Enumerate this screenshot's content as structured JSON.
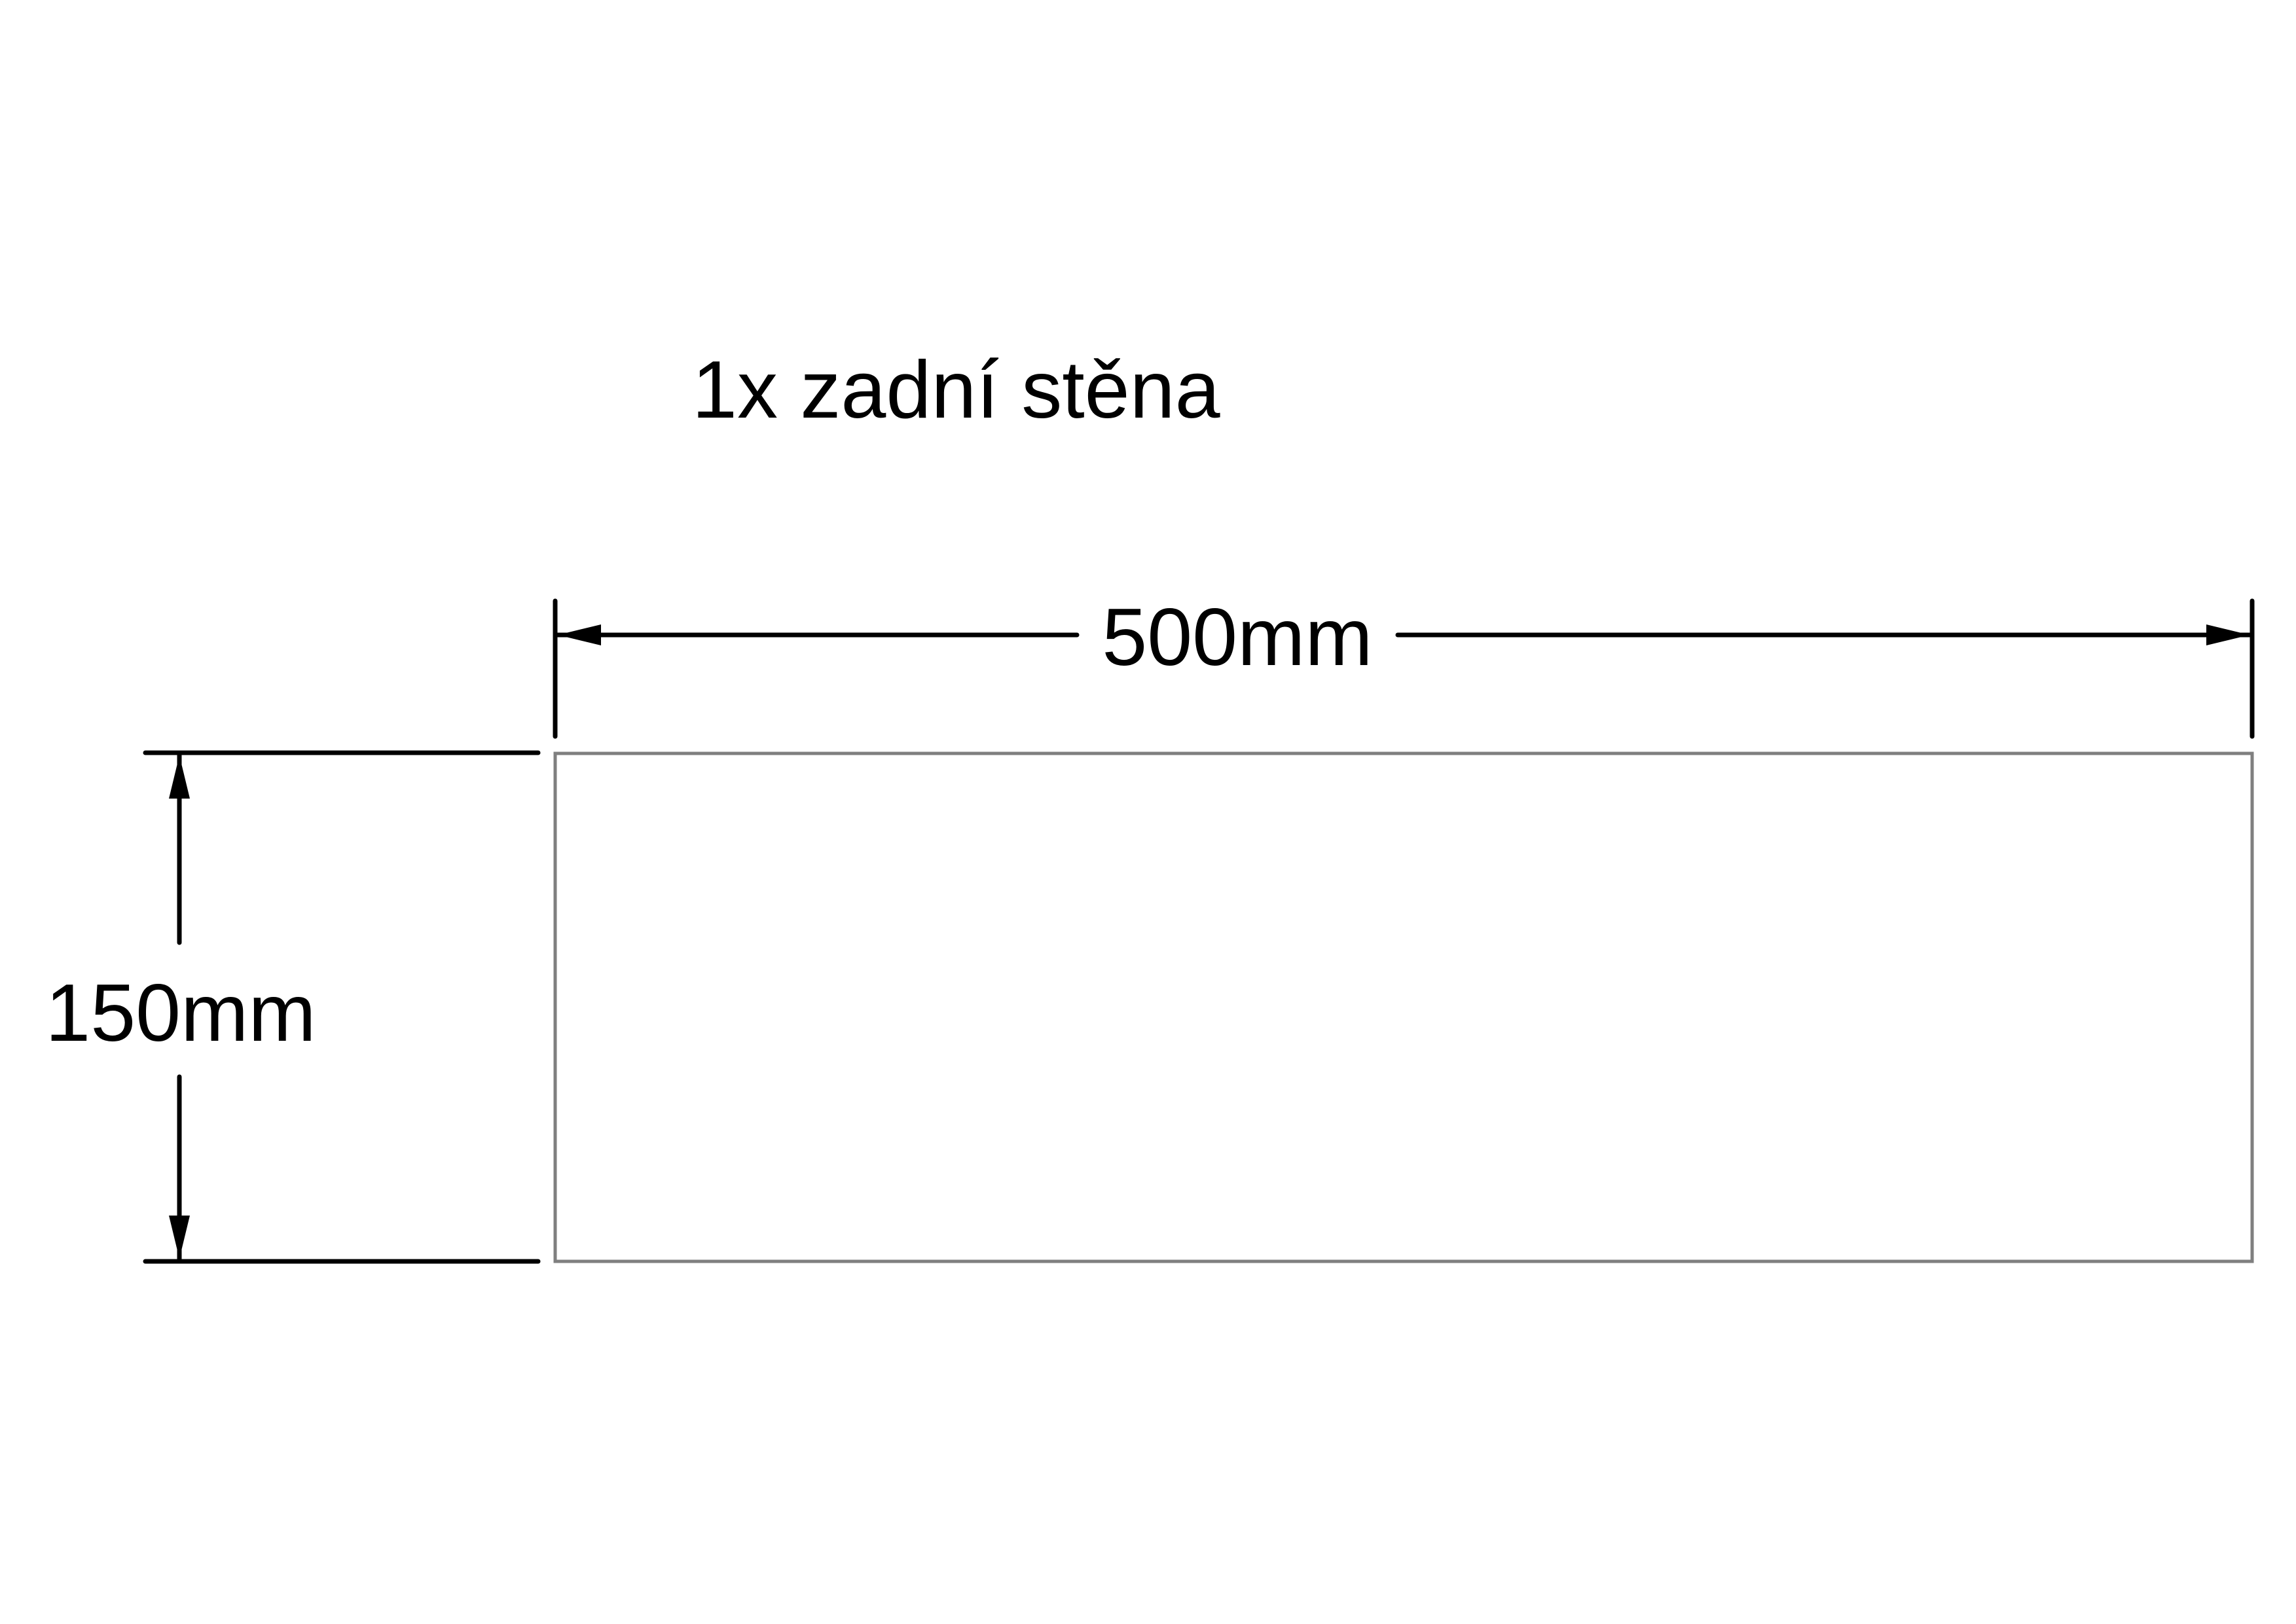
{
  "title": "1x zadní stěna",
  "part": {
    "quantity": 1,
    "name": "zadní stěna",
    "width_mm": 500,
    "height_mm": 150
  },
  "dimensions": {
    "width_label": "500mm",
    "height_label": "150mm"
  },
  "colors": {
    "dimension_lines": "#000000",
    "panel_outline": "#7f7f7f",
    "background": "#ffffff"
  }
}
